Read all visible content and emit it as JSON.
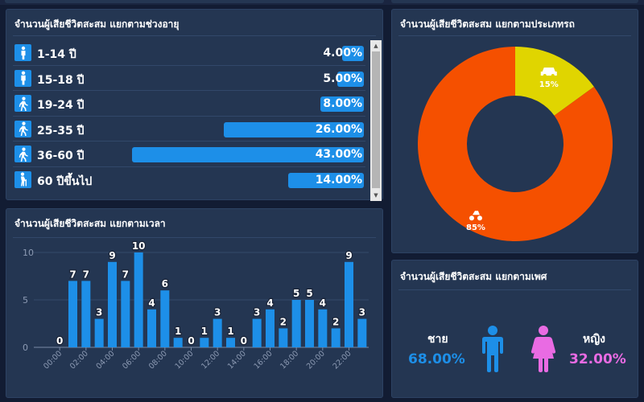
{
  "colors": {
    "blue": "#1d8fe8",
    "orange": "#f55000",
    "yellow": "#e0d500",
    "pink": "#e96be3",
    "panel": "#243652"
  },
  "age_panel": {
    "title": "จำนวนผู้เสียชีวิตสะสม แยกตามช่วงอายุ",
    "rows": [
      {
        "label": "1-14 ปี",
        "value": "4.00%",
        "pct": 4,
        "icon": "child-icon"
      },
      {
        "label": "15-18 ปี",
        "value": "5.00%",
        "pct": 5,
        "icon": "teen-icon"
      },
      {
        "label": "19-24 ปี",
        "value": "8.00%",
        "pct": 8,
        "icon": "walking-person-icon"
      },
      {
        "label": "25-35 ปี",
        "value": "26.00%",
        "pct": 26,
        "icon": "walking-person-icon"
      },
      {
        "label": "36-60 ปี",
        "value": "43.00%",
        "pct": 43,
        "icon": "walking-person-icon"
      },
      {
        "label": "60 ปีขึ้นไป",
        "value": "14.00%",
        "pct": 14,
        "icon": "elderly-person-icon"
      }
    ]
  },
  "time_panel": {
    "title": "จำนวนผู้เสียชีวิตสะสม แยกตามเวลา"
  },
  "vehicle_panel": {
    "title": "จำนวนผู้เสียชีวิตสะสม แยกตามประเภทรถ"
  },
  "gender_panel": {
    "title": "จำนวนผู้เสียชีวิตสะสม แยกตามเพศ",
    "male": {
      "label": "ชาย",
      "value": "68.00%"
    },
    "female": {
      "label": "หญิง",
      "value": "32.00%"
    }
  },
  "chart_data": [
    {
      "type": "bar",
      "x": [
        "00:00",
        "01:00",
        "02:00",
        "03:00",
        "04:00",
        "05:00",
        "06:00",
        "07:00",
        "08:00",
        "09:00",
        "10:00",
        "11:00",
        "12:00",
        "13:00",
        "14:00",
        "15:00",
        "16:00",
        "17:00",
        "18:00",
        "19:00",
        "20:00",
        "21:00",
        "22:00",
        "23:00"
      ],
      "tick_labels": [
        "00:00",
        "02:00",
        "04:00",
        "06:00",
        "08:00",
        "10:00",
        "12:00",
        "14:00",
        "16:00",
        "18:00",
        "20:00",
        "22:00"
      ],
      "values": [
        0,
        7,
        7,
        3,
        9,
        7,
        10,
        4,
        6,
        1,
        0,
        1,
        3,
        1,
        0,
        3,
        4,
        2,
        5,
        5,
        4,
        2,
        9,
        3
      ],
      "ylim": [
        0,
        10
      ],
      "yticks": [
        0,
        5,
        10
      ],
      "grid": true
    },
    {
      "type": "pie",
      "donut": true,
      "slices": [
        {
          "icon": "car-icon",
          "value": 15,
          "label": "15%",
          "color": "#e0d500"
        },
        {
          "icon": "motorcycle-icon",
          "value": 85,
          "label": "85%",
          "color": "#f55000"
        }
      ]
    }
  ]
}
